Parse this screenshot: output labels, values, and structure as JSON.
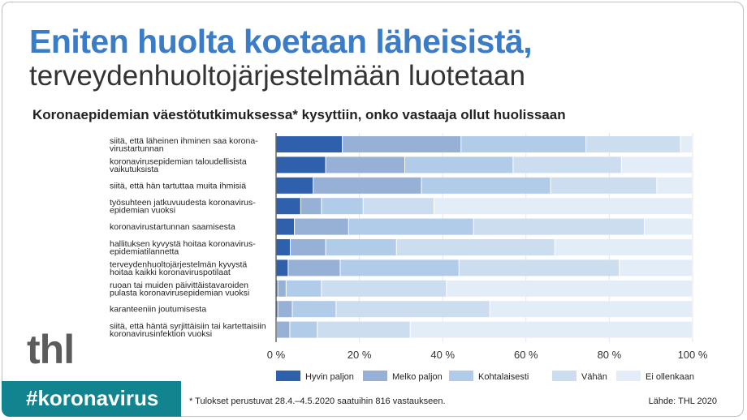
{
  "header": {
    "title": "Eniten huolta koetaan läheisistä,",
    "subtitle": "terveydenhuoltojärjestelmään luotetaan"
  },
  "logo": "thl",
  "banner": "#koronavirus",
  "footer": {
    "note": "* Tulokset perustuvat 28.4.–4.5.2020 saatuihin 816 vastaukseen.",
    "source": "Lähde: THL 2020"
  },
  "chart_data": {
    "type": "bar",
    "orientation": "horizontal",
    "stacked": true,
    "title": "Koronaepidemian väestötutkimuksessa* kysyttiin, onko vastaaja ollut huolissaan",
    "categories": [
      [
        "siitä, että läheinen ihminen saa korona-",
        "virustartunnan"
      ],
      [
        "koronavirusepidemian taloudellisista",
        "vaikutuksista"
      ],
      [
        "siitä, että hän tartuttaa muita ihmisiä"
      ],
      [
        "työsuhteen jatkuvuudesta koronavirus-",
        "epidemian vuoksi"
      ],
      [
        "koronavirustartunnan saamisesta"
      ],
      [
        "hallituksen kyvystä hoitaa koronavirus-",
        "epidemiatilannetta"
      ],
      [
        "terveydenhuoltojärjestelmän kyvystä",
        "hoitaa kaikki koronaviruspotilaat"
      ],
      [
        "ruoan tai muiden päivittäistavaroiden",
        "pulasta koronavirusepidemian vuoksi"
      ],
      [
        "karanteeniin joutumisesta"
      ],
      [
        "siitä, että häntä syrjittäisiin tai kartettaisiin",
        "koronavirusinfektion vuoksi"
      ]
    ],
    "series": [
      {
        "name": "Hyvin paljon",
        "color": "#2f60ab",
        "values": [
          16,
          12,
          9,
          6,
          4.5,
          3.5,
          3,
          0.5,
          0.5,
          0.2
        ]
      },
      {
        "name": "Melko paljon",
        "color": "#96b0d6",
        "values": [
          28.5,
          19,
          26,
          5,
          13,
          8.5,
          12.5,
          2,
          3.5,
          3.2
        ]
      },
      {
        "name": "Kohtalaisesti",
        "color": "#b0cce9",
        "values": [
          30,
          26,
          31,
          10,
          30,
          17,
          28.5,
          8.5,
          10.5,
          6.6
        ]
      },
      {
        "name": "Vähän",
        "color": "#cbddef",
        "values": [
          22.7,
          26,
          25.5,
          17,
          41,
          38,
          38.5,
          30,
          36.9,
          22.3
        ]
      },
      {
        "name": "Ei ollenkaan",
        "color": "#e3edf7",
        "values": [
          2.8,
          17,
          8.5,
          62,
          11.5,
          33,
          17.5,
          59,
          48.6,
          67.7
        ]
      }
    ],
    "xlim": [
      0,
      100
    ],
    "xticks": [
      "0 %",
      "20 %",
      "40 %",
      "60 %",
      "80 %",
      "100 %"
    ],
    "grid": true,
    "legend": "bottom"
  }
}
